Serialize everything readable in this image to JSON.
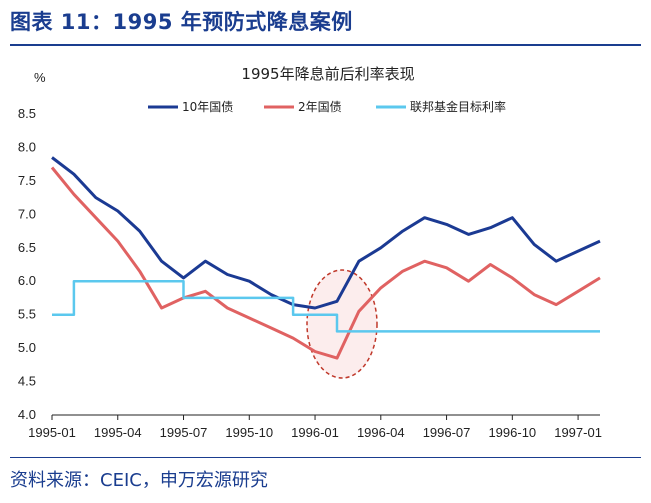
{
  "figure": {
    "title": "图表 11：1995 年预防式降息案例",
    "source": "资料来源：CEIC，申万宏源研究"
  },
  "colors": {
    "brand": "#1a3d8f",
    "series_10y": "#1b3a93",
    "series_2y": "#e06262",
    "series_fed": "#5bc8ee",
    "highlight": "#c0392b"
  },
  "chart_data": {
    "type": "line",
    "title": "1995年降息前后利率表现",
    "ylabel": "%",
    "ylim": [
      4.0,
      8.5
    ],
    "yticks": [
      "4.0",
      "4.5",
      "5.0",
      "5.5",
      "6.0",
      "6.5",
      "7.0",
      "7.5",
      "8.0",
      "8.5"
    ],
    "xlim": [
      "1995-01",
      "1997-02"
    ],
    "xticks": [
      "1995-01",
      "1995-04",
      "1995-07",
      "1995-10",
      "1996-01",
      "1996-04",
      "1996-07",
      "1996-10",
      "1997-01"
    ],
    "grid": false,
    "legend_position": "top",
    "annotation": "dashed red ellipse around early-1996 trough",
    "series": [
      {
        "name": "10年国债",
        "x": [
          "1995-01",
          "1995-02",
          "1995-03",
          "1995-04",
          "1995-05",
          "1995-06",
          "1995-07",
          "1995-08",
          "1995-09",
          "1995-10",
          "1995-11",
          "1995-12",
          "1996-01",
          "1996-02",
          "1996-03",
          "1996-04",
          "1996-05",
          "1996-06",
          "1996-07",
          "1996-08",
          "1996-09",
          "1996-10",
          "1996-11",
          "1996-12",
          "1997-01",
          "1997-02"
        ],
        "values": [
          7.85,
          7.6,
          7.25,
          7.05,
          6.75,
          6.3,
          6.05,
          6.3,
          6.1,
          6.0,
          5.8,
          5.65,
          5.6,
          5.7,
          6.3,
          6.5,
          6.75,
          6.95,
          6.85,
          6.7,
          6.8,
          6.95,
          6.55,
          6.3,
          6.45,
          6.6
        ]
      },
      {
        "name": "2年国债",
        "x": [
          "1995-01",
          "1995-02",
          "1995-03",
          "1995-04",
          "1995-05",
          "1995-06",
          "1995-07",
          "1995-08",
          "1995-09",
          "1995-10",
          "1995-11",
          "1995-12",
          "1996-01",
          "1996-02",
          "1996-03",
          "1996-04",
          "1996-05",
          "1996-06",
          "1996-07",
          "1996-08",
          "1996-09",
          "1996-10",
          "1996-11",
          "1996-12",
          "1997-01",
          "1997-02"
        ],
        "values": [
          7.7,
          7.3,
          6.95,
          6.6,
          6.15,
          5.6,
          5.75,
          5.85,
          5.6,
          5.45,
          5.3,
          5.15,
          4.95,
          4.85,
          5.55,
          5.9,
          6.15,
          6.3,
          6.2,
          6.0,
          6.25,
          6.05,
          5.8,
          5.65,
          5.85,
          6.05
        ]
      },
      {
        "name": "联邦基金目标利率",
        "x": [
          "1995-01",
          "1995-02",
          "1995-07",
          "1995-12",
          "1996-02",
          "1997-02"
        ],
        "values": [
          5.5,
          6.0,
          5.75,
          5.5,
          5.25,
          5.25
        ],
        "step": true
      }
    ]
  }
}
